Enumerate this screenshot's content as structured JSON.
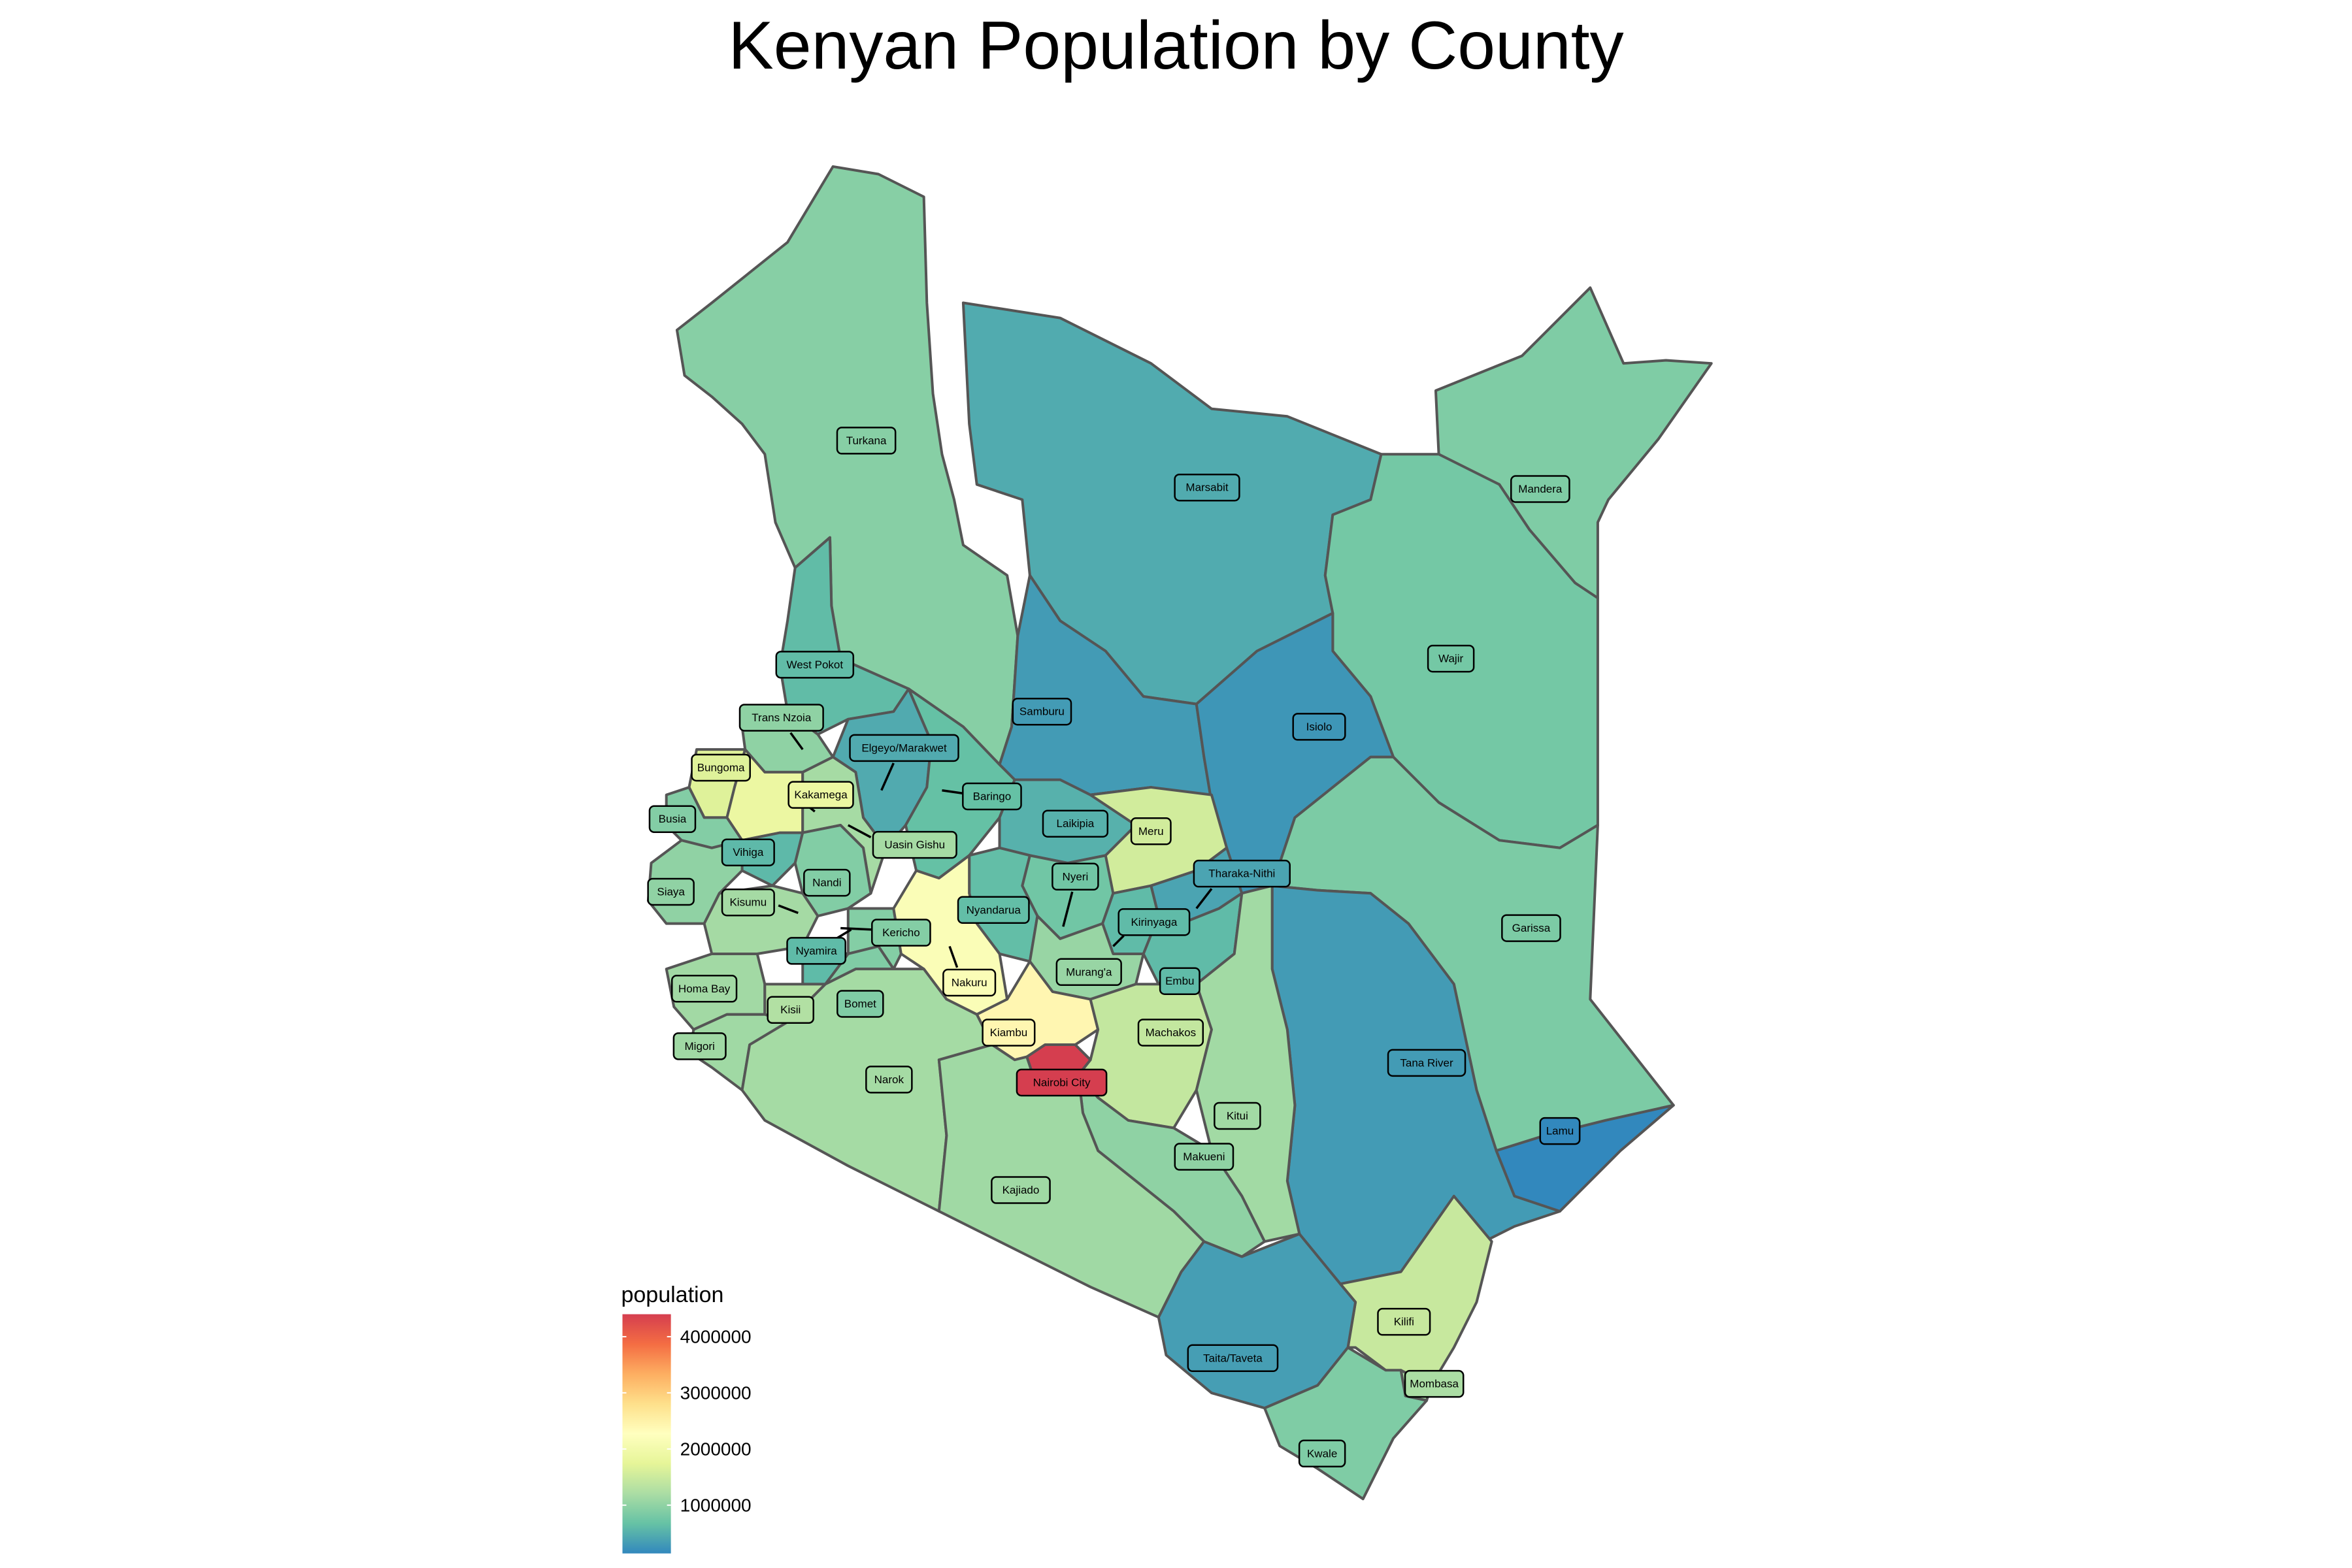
{
  "title": "Kenyan Population by County",
  "legend": {
    "title": "population",
    "ticks": [
      {
        "value": 1000000,
        "label": "1000000"
      },
      {
        "value": 2000000,
        "label": "2000000"
      },
      {
        "value": 3000000,
        "label": "3000000"
      },
      {
        "value": 4000000,
        "label": "4000000"
      }
    ],
    "range": [
      140000,
      4400000
    ],
    "palette": [
      "#3288bd",
      "#66c2a5",
      "#abdda4",
      "#e6f598",
      "#ffffbf",
      "#fee08b",
      "#fdae61",
      "#f46d43",
      "#d53e4f"
    ]
  },
  "colors": {
    "outline": "#555555",
    "background": "#ffffff"
  },
  "counties": [
    {
      "name": "Turkana",
      "population": 926976
    },
    {
      "name": "Marsabit",
      "population": 459785
    },
    {
      "name": "Mandera",
      "population": 867457
    },
    {
      "name": "Wajir",
      "population": 781263
    },
    {
      "name": "West Pokot",
      "population": 621241
    },
    {
      "name": "Samburu",
      "population": 310327
    },
    {
      "name": "Isiolo",
      "population": 268002
    },
    {
      "name": "Trans Nzoia",
      "population": 990341
    },
    {
      "name": "Elgeyo/Marakwet",
      "population": 454480
    },
    {
      "name": "Bungoma",
      "population": 1670570
    },
    {
      "name": "Kakamega",
      "population": 1867579
    },
    {
      "name": "Baringo",
      "population": 666763
    },
    {
      "name": "Busia",
      "population": 893681
    },
    {
      "name": "Laikipia",
      "population": 518560
    },
    {
      "name": "Meru",
      "population": 1545714
    },
    {
      "name": "Uasin Gishu",
      "population": 1163186
    },
    {
      "name": "Vihiga",
      "population": 590013
    },
    {
      "name": "Nandi",
      "population": 885711
    },
    {
      "name": "Tharaka-Nithi",
      "population": 393177
    },
    {
      "name": "Siaya",
      "population": 993183
    },
    {
      "name": "Kisumu",
      "population": 1155574
    },
    {
      "name": "Nyeri",
      "population": 759164
    },
    {
      "name": "Garissa",
      "population": 841353
    },
    {
      "name": "Nyandarua",
      "population": 638289
    },
    {
      "name": "Kirinyaga",
      "population": 610411
    },
    {
      "name": "Kericho",
      "population": 901777
    },
    {
      "name": "Nyamira",
      "population": 605576
    },
    {
      "name": "Murang'a",
      "population": 1056640
    },
    {
      "name": "Embu",
      "population": 608599
    },
    {
      "name": "Homa Bay",
      "population": 1131950
    },
    {
      "name": "Nakuru",
      "population": 2162202
    },
    {
      "name": "Kisii",
      "population": 1266860
    },
    {
      "name": "Bomet",
      "population": 875689
    },
    {
      "name": "Migori",
      "population": 1116436
    },
    {
      "name": "Kiambu",
      "population": 2417735
    },
    {
      "name": "Machakos",
      "population": 1421932
    },
    {
      "name": "Tana River",
      "population": 315943
    },
    {
      "name": "Narok",
      "population": 1157873
    },
    {
      "name": "Nairobi City",
      "population": 4397073
    },
    {
      "name": "Kitui",
      "population": 1136187
    },
    {
      "name": "Lamu",
      "population": 143920
    },
    {
      "name": "Makueni",
      "population": 987653
    },
    {
      "name": "Kajiado",
      "population": 1117840
    },
    {
      "name": "Kilifi",
      "population": 1453787
    },
    {
      "name": "Taita/Taveta",
      "population": 340671
    },
    {
      "name": "Mombasa",
      "population": 1208333
    },
    {
      "name": "Kwale",
      "population": 866820
    }
  ]
}
